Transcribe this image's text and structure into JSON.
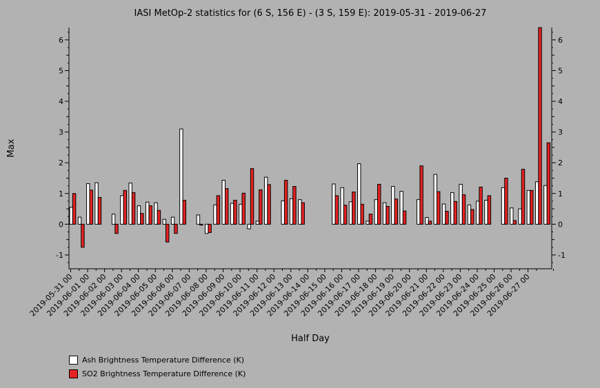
{
  "chart_data": {
    "type": "bar",
    "title": "IASI MetOp-2 statistics for (6 S, 156 E) - (3 S, 159 E): 2019-05-31 - 2019-06-27",
    "xlabel": "Half Day",
    "ylabel": "Max",
    "ylim": [
      -1.45,
      6.4
    ],
    "yticks": [
      -1,
      0,
      1,
      2,
      3,
      4,
      5,
      6
    ],
    "xtick_labels": [
      "2019-05-31 00",
      "2019-06-01 00",
      "2019-06-02 00",
      "2019-06-03 00",
      "2019-06-04 00",
      "2019-06-05 00",
      "2019-06-06 00",
      "2019-06-07 00",
      "2019-06-08 00",
      "2019-06-09 00",
      "2019-06-10 00",
      "2019-06-11 00",
      "2019-06-12 00",
      "2019-06-13 00",
      "2019-06-14 00",
      "2019-06-15 00",
      "2019-06-16 00",
      "2019-06-17 00",
      "2019-06-18 00",
      "2019-06-19 00",
      "2019-06-20 00",
      "2019-06-21 00",
      "2019-06-22 00",
      "2019-06-23 00",
      "2019-06-24 00",
      "2019-06-25 00",
      "2019-06-26 00",
      "2019-06-27 00"
    ],
    "series": [
      {
        "name": "Ash Brightness Temperature Difference (K)",
        "color": "#ffffff",
        "values": [
          0.55,
          0.23,
          1.32,
          1.35,
          null,
          0.33,
          0.93,
          1.34,
          0.6,
          0.72,
          0.7,
          0.16,
          0.23,
          3.1,
          null,
          0.3,
          -0.3,
          0.63,
          1.43,
          0.68,
          0.65,
          -0.15,
          0.1,
          1.53,
          null,
          0.76,
          0.83,
          0.8,
          null,
          null,
          null,
          1.31,
          1.19,
          0.73,
          1.97,
          0.1,
          0.8,
          0.7,
          1.23,
          1.07,
          null,
          0.8,
          0.22,
          1.62,
          0.66,
          1.03,
          1.3,
          0.63,
          0.75,
          0.78,
          null,
          1.19,
          0.53,
          0.5,
          1.1,
          1.38,
          1.26
        ]
      },
      {
        "name": "SO2 Brightness Temperature Difference (K)",
        "color": "#e52222",
        "values": [
          1.0,
          -0.75,
          1.11,
          0.87,
          null,
          -0.3,
          1.1,
          1.03,
          0.35,
          0.6,
          0.45,
          -0.58,
          -0.3,
          0.78,
          null,
          -0.03,
          -0.27,
          0.93,
          1.16,
          0.78,
          1.01,
          1.81,
          1.12,
          1.29,
          null,
          1.43,
          1.23,
          0.7,
          null,
          null,
          null,
          0.93,
          0.62,
          1.05,
          0.65,
          0.33,
          1.3,
          0.58,
          0.82,
          0.43,
          null,
          1.9,
          0.1,
          1.06,
          0.42,
          0.74,
          0.96,
          0.48,
          1.21,
          0.93,
          null,
          1.5,
          0.12,
          1.79,
          1.1,
          6.4,
          2.65
        ]
      }
    ],
    "legend_position": "bottom-left"
  }
}
